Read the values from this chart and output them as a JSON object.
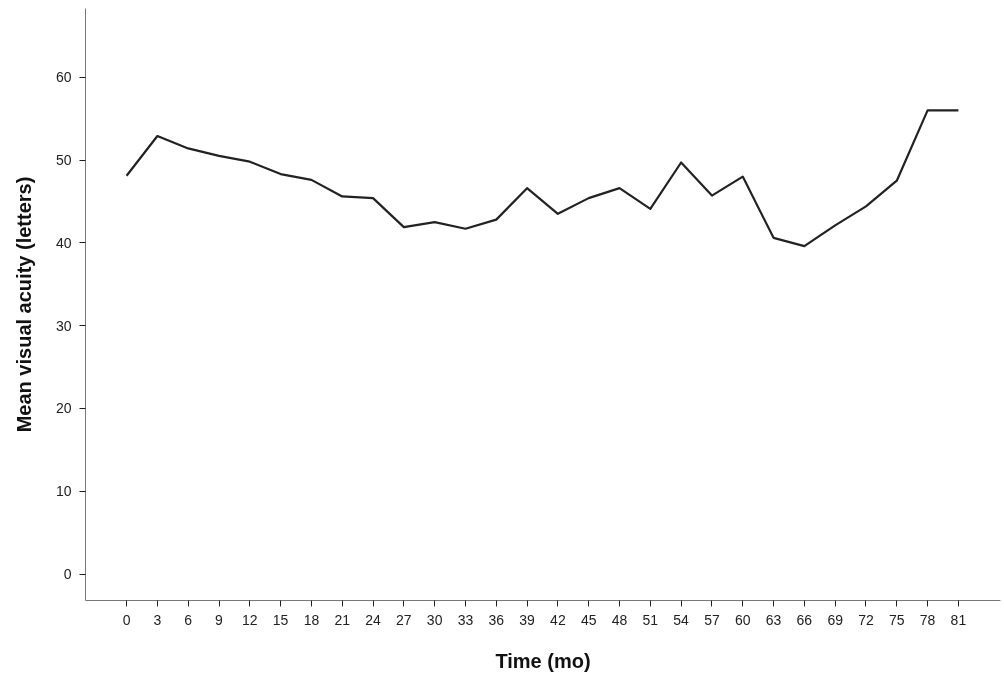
{
  "chart_data": {
    "type": "line",
    "xlabel": "Time (mo)",
    "ylabel": "Mean visual acuity (letters)",
    "x": [
      0,
      3,
      6,
      9,
      12,
      15,
      18,
      21,
      24,
      27,
      30,
      33,
      36,
      39,
      42,
      45,
      48,
      51,
      54,
      57,
      60,
      63,
      66,
      69,
      72,
      75,
      78,
      81
    ],
    "series": [
      {
        "color": "#222222",
        "values": [
          48.1,
          52.9,
          51.4,
          50.5,
          49.8,
          48.3,
          47.6,
          45.6,
          45.4,
          41.9,
          42.5,
          41.7,
          42.8,
          46.6,
          43.5,
          45.4,
          46.6,
          44.1,
          49.7,
          45.7,
          48.0,
          40.6,
          39.6,
          42.1,
          44.4,
          47.5,
          56.0,
          56.0
        ]
      }
    ],
    "xlim": [
      -4.0,
      85.1
    ],
    "ylim": [
      -3.2,
      68.3
    ],
    "xticks": [
      0,
      3,
      6,
      9,
      12,
      15,
      18,
      21,
      24,
      27,
      30,
      33,
      36,
      39,
      42,
      45,
      48,
      51,
      54,
      57,
      60,
      63,
      66,
      69,
      72,
      75,
      78,
      81
    ],
    "yticks": [
      0,
      10,
      20,
      30,
      40,
      50,
      60
    ],
    "grid": false,
    "marker": "none",
    "line_style": "solid"
  }
}
